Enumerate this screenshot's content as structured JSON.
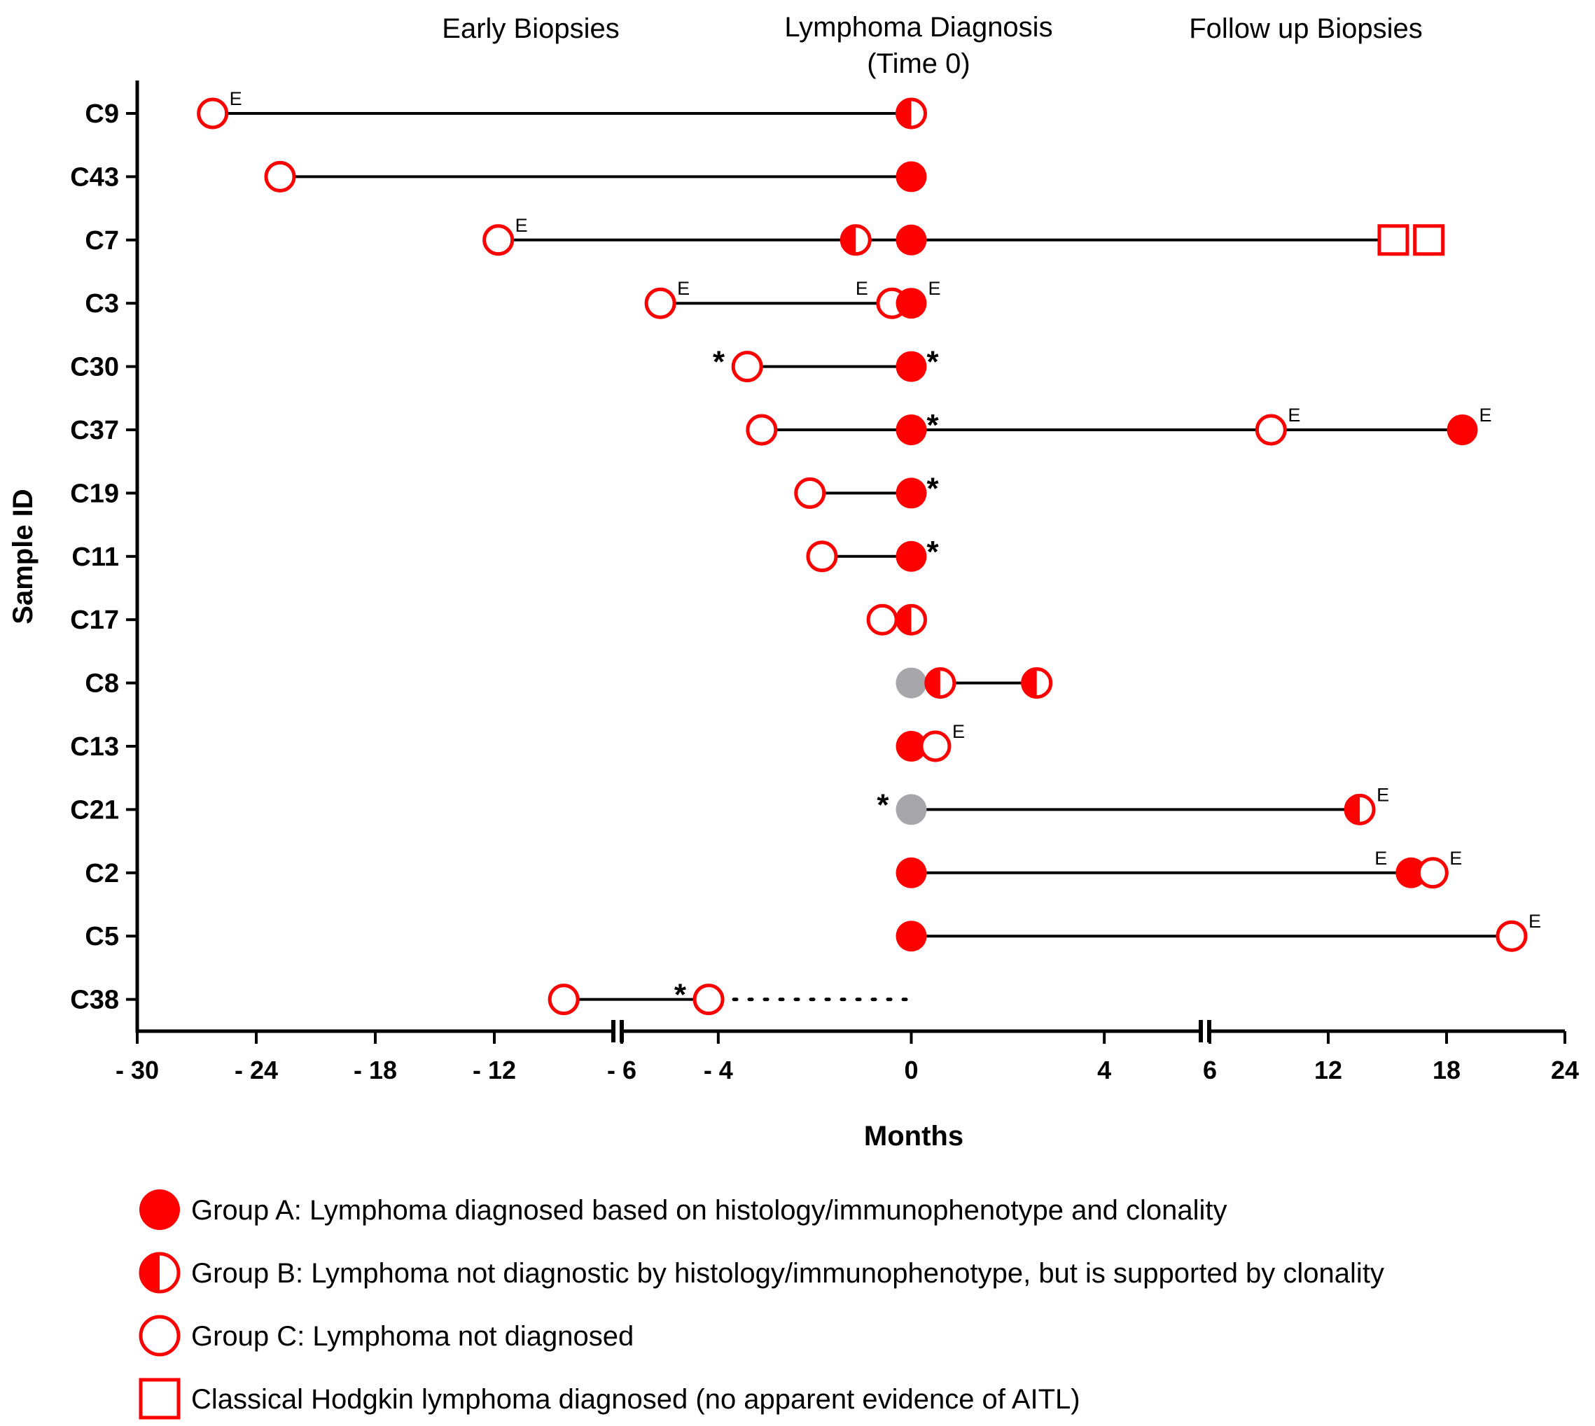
{
  "chart_data": {
    "type": "scatter",
    "xlabel": "Months",
    "ylabel": "Sample ID",
    "headers": [
      "Early Biopsies",
      "Lymphoma Diagnosis",
      "(Time 0)",
      "Follow up Biopsies"
    ],
    "x_tick_labels": [
      "- 30",
      "- 24",
      "- 18",
      "- 12",
      "- 6",
      "- 4",
      "0",
      "4",
      "6",
      "12",
      "18",
      "24"
    ],
    "axis_segments": [
      {
        "range": [
          -30,
          -6
        ],
        "ticks": [
          -30,
          -24,
          -18,
          -12,
          -6
        ]
      },
      {
        "range": [
          -6,
          6
        ],
        "ticks": [
          -6,
          -4,
          0,
          4,
          6
        ]
      },
      {
        "range": [
          6,
          24
        ],
        "ticks": [
          6,
          12,
          18,
          24
        ]
      }
    ],
    "axis_breaks": [
      -6,
      6
    ],
    "colors": {
      "red": "#ff0000",
      "gray": "#a7a7ab",
      "black": "#000000"
    },
    "rows": [
      {
        "id": "C9",
        "line": [
          -26.2,
          0
        ],
        "points": [
          {
            "x": -26.2,
            "g": "C",
            "note": "E"
          },
          {
            "x": 0,
            "g": "B"
          }
        ]
      },
      {
        "id": "C43",
        "line": [
          -22.8,
          0
        ],
        "points": [
          {
            "x": -22.8,
            "g": "C"
          },
          {
            "x": 0,
            "g": "A"
          }
        ]
      },
      {
        "id": "C7",
        "line": [
          -11.8,
          15.5
        ],
        "points": [
          {
            "x": -11.8,
            "g": "C",
            "note": "E"
          },
          {
            "x": -1.15,
            "g": "B"
          },
          {
            "x": 0,
            "g": "A"
          },
          {
            "x": 15.3,
            "g": "H"
          },
          {
            "x": 17.1,
            "g": "H"
          }
        ]
      },
      {
        "id": "C3",
        "line": [
          -5.2,
          -0.4
        ],
        "points": [
          {
            "x": -5.2,
            "g": "C",
            "note": "E"
          },
          {
            "x": -0.4,
            "g": "C",
            "note": "E",
            "note_side": "left"
          },
          {
            "x": 0,
            "g": "A",
            "note": "E"
          }
        ]
      },
      {
        "id": "C30",
        "line": [
          -3.4,
          0
        ],
        "points": [
          {
            "x": -3.4,
            "g": "C",
            "star": "left"
          },
          {
            "x": 0,
            "g": "A",
            "star": "right"
          }
        ]
      },
      {
        "id": "C37",
        "line": [
          -3.1,
          18.8
        ],
        "points": [
          {
            "x": -3.1,
            "g": "C"
          },
          {
            "x": 0,
            "g": "A",
            "star": "right"
          },
          {
            "x": 9.1,
            "g": "C",
            "note": "E"
          },
          {
            "x": 18.8,
            "g": "A",
            "note": "E"
          }
        ]
      },
      {
        "id": "C19",
        "line": [
          -2.1,
          0
        ],
        "points": [
          {
            "x": -2.1,
            "g": "C"
          },
          {
            "x": 0,
            "g": "A",
            "star": "right"
          }
        ]
      },
      {
        "id": "C11",
        "line": [
          -1.85,
          0
        ],
        "points": [
          {
            "x": -1.85,
            "g": "C"
          },
          {
            "x": 0,
            "g": "A",
            "star": "right"
          }
        ]
      },
      {
        "id": "C17",
        "line": null,
        "points": [
          {
            "x": -0.6,
            "g": "C"
          },
          {
            "x": 0,
            "g": "B"
          }
        ]
      },
      {
        "id": "C8",
        "line": [
          0,
          2.6
        ],
        "points": [
          {
            "x": 0,
            "g": "gray"
          },
          {
            "x": 0.6,
            "g": "B"
          },
          {
            "x": 2.6,
            "g": "B"
          }
        ]
      },
      {
        "id": "C13",
        "line": null,
        "points": [
          {
            "x": 0,
            "g": "A"
          },
          {
            "x": 0.5,
            "g": "C",
            "note": "E"
          }
        ]
      },
      {
        "id": "C21",
        "line": [
          0,
          13.6
        ],
        "points": [
          {
            "x": 0,
            "g": "gray",
            "star": "left"
          },
          {
            "x": 13.6,
            "g": "B",
            "note": "E"
          }
        ]
      },
      {
        "id": "C2",
        "line": [
          0,
          17.3
        ],
        "points": [
          {
            "x": 0,
            "g": "A"
          },
          {
            "x": 16.2,
            "g": "A",
            "note": "E",
            "note_side": "left"
          },
          {
            "x": 17.3,
            "g": "C",
            "note": "E"
          }
        ]
      },
      {
        "id": "C5",
        "line": [
          0,
          21.3
        ],
        "points": [
          {
            "x": 0,
            "g": "A"
          },
          {
            "x": 21.3,
            "g": "C",
            "note": "E"
          }
        ]
      },
      {
        "id": "C38",
        "line": [
          -8.5,
          -4.2
        ],
        "dotted": [
          -4.2,
          0
        ],
        "points": [
          {
            "x": -8.5,
            "g": "C"
          },
          {
            "x": -4.2,
            "g": "C",
            "star": "left"
          }
        ]
      }
    ],
    "legend": [
      {
        "symbol": "A",
        "label": "Group A: Lymphoma diagnosed based on histology/immunophenotype and clonality"
      },
      {
        "symbol": "B",
        "label": "Group B: Lymphoma not diagnostic by histology/immunophenotype, but is supported by clonality"
      },
      {
        "symbol": "C",
        "label": "Group C: Lymphoma not diagnosed"
      },
      {
        "symbol": "H",
        "label": "Classical Hodgkin lymphoma diagnosed (no apparent evidence of AITL)"
      }
    ]
  }
}
